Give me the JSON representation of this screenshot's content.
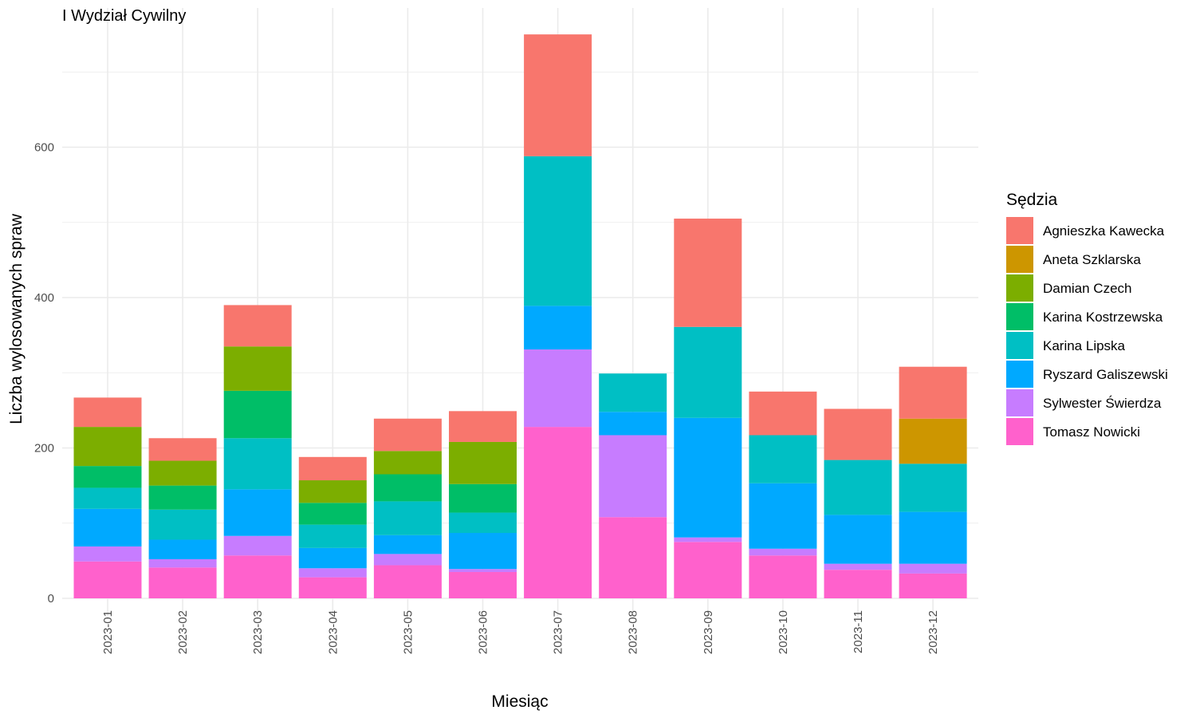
{
  "chart_data": {
    "type": "bar",
    "stacked": true,
    "title": "I Wydział Cywilny",
    "xlabel": "Miesiąc",
    "ylabel": "Liczba wylosowanych spraw",
    "ylim": [
      0,
      750
    ],
    "yticks": [
      0,
      200,
      400,
      600
    ],
    "grid": true,
    "legend_position": "right",
    "legend_title": "Sędzia",
    "categories": [
      "2023-01",
      "2023-02",
      "2023-03",
      "2023-04",
      "2023-05",
      "2023-06",
      "2023-07",
      "2023-08",
      "2023-09",
      "2023-10",
      "2023-11",
      "2023-12"
    ],
    "series": [
      {
        "name": "Tomasz Nowicki",
        "color": "#FF61CC",
        "values": [
          49,
          41,
          57,
          28,
          44,
          35,
          228,
          108,
          75,
          57,
          38,
          33
        ]
      },
      {
        "name": "Sylwester Świerdza",
        "color": "#C77CFF",
        "values": [
          20,
          11,
          26,
          12,
          15,
          4,
          103,
          109,
          6,
          9,
          8,
          13
        ]
      },
      {
        "name": "Ryszard Galiszewski",
        "color": "#00A9FF",
        "values": [
          50,
          26,
          62,
          27,
          25,
          48,
          58,
          31,
          159,
          87,
          65,
          69
        ]
      },
      {
        "name": "Karina Lipska",
        "color": "#00BFC4",
        "values": [
          28,
          40,
          68,
          31,
          45,
          27,
          199,
          51,
          121,
          64,
          73,
          64
        ]
      },
      {
        "name": "Karina Kostrzewska",
        "color": "#00BE67",
        "values": [
          29,
          32,
          63,
          29,
          36,
          38,
          0,
          0,
          0,
          0,
          0,
          0
        ]
      },
      {
        "name": "Damian Czech",
        "color": "#7CAE00",
        "values": [
          52,
          33,
          59,
          30,
          31,
          56,
          0,
          0,
          0,
          0,
          0,
          0
        ]
      },
      {
        "name": "Aneta Szklarska",
        "color": "#CD9600",
        "values": [
          0,
          0,
          0,
          0,
          0,
          0,
          0,
          0,
          0,
          0,
          0,
          60
        ]
      },
      {
        "name": "Agnieszka Kawecka",
        "color": "#F8766D",
        "values": [
          39,
          30,
          55,
          31,
          43,
          41,
          162,
          0,
          144,
          58,
          68,
          69
        ]
      }
    ],
    "legend_order": [
      "Agnieszka Kawecka",
      "Aneta Szklarska",
      "Damian Czech",
      "Karina Kostrzewska",
      "Karina Lipska",
      "Ryszard Galiszewski",
      "Sylwester Świerdza",
      "Tomasz Nowicki"
    ]
  }
}
